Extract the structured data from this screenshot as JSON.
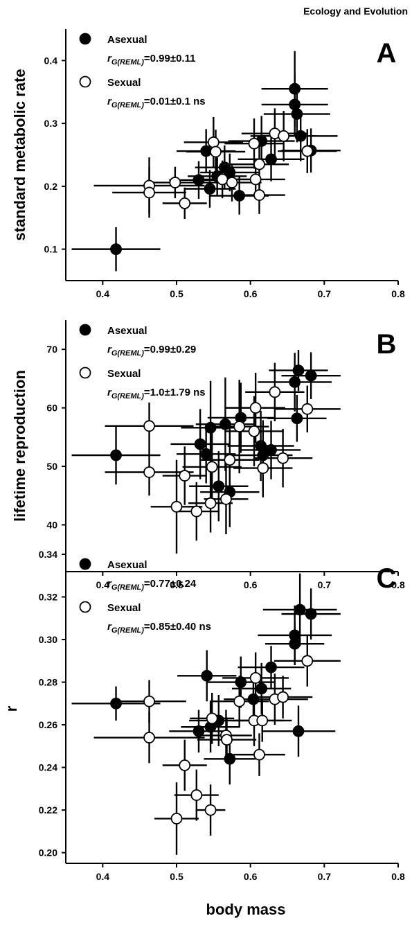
{
  "header": {
    "journal": "Ecology and Evolution"
  },
  "chart_data": [
    {
      "type": "scatter",
      "panel_label": "A",
      "xlabel": "",
      "ylabel": "standard metabolic rate",
      "xlim": [
        0.35,
        0.8
      ],
      "ylim": [
        0.05,
        0.45
      ],
      "xticks": [
        0.4,
        0.5,
        0.6,
        0.7,
        0.8
      ],
      "xtick_labels": [
        "0.4",
        "0.5",
        "0.6",
        "0.7",
        "0.8"
      ],
      "yticks": [
        0.1,
        0.2,
        0.3,
        0.4
      ],
      "ytick_labels": [
        "0.1",
        "0.2",
        "0.3",
        "0.4"
      ],
      "legend": [
        {
          "marker": "filled",
          "label": "Asexual",
          "stat_prefix": "r",
          "stat_sub": "G(REML)",
          "stat_value": "=0.99±0.11"
        },
        {
          "marker": "open",
          "label": "Sexual",
          "stat_prefix": "r",
          "stat_sub": "G(REML)",
          "stat_value": "=0.01±0.1 ns"
        }
      ],
      "series": [
        {
          "name": "Asexual",
          "marker": "filled",
          "points": [
            {
              "x": 0.418,
              "y": 0.1,
              "xerr": 0.06,
              "yerr": 0.035
            },
            {
              "x": 0.54,
              "y": 0.256,
              "xerr": 0.04,
              "yerr": 0.035
            },
            {
              "x": 0.53,
              "y": 0.21,
              "xerr": 0.04,
              "yerr": 0.03
            },
            {
              "x": 0.545,
              "y": 0.196,
              "xerr": 0.035,
              "yerr": 0.03
            },
            {
              "x": 0.555,
              "y": 0.216,
              "xerr": 0.04,
              "yerr": 0.03
            },
            {
              "x": 0.565,
              "y": 0.23,
              "xerr": 0.04,
              "yerr": 0.035
            },
            {
              "x": 0.572,
              "y": 0.222,
              "xerr": 0.04,
              "yerr": 0.03
            },
            {
              "x": 0.585,
              "y": 0.185,
              "xerr": 0.04,
              "yerr": 0.03
            },
            {
              "x": 0.615,
              "y": 0.272,
              "xerr": 0.045,
              "yerr": 0.04
            },
            {
              "x": 0.628,
              "y": 0.243,
              "xerr": 0.045,
              "yerr": 0.035
            },
            {
              "x": 0.66,
              "y": 0.355,
              "xerr": 0.045,
              "yerr": 0.06
            },
            {
              "x": 0.66,
              "y": 0.33,
              "xerr": 0.045,
              "yerr": 0.05
            },
            {
              "x": 0.663,
              "y": 0.315,
              "xerr": 0.045,
              "yerr": 0.045
            },
            {
              "x": 0.668,
              "y": 0.28,
              "xerr": 0.05,
              "yerr": 0.04
            },
            {
              "x": 0.682,
              "y": 0.257,
              "xerr": 0.04,
              "yerr": 0.035
            }
          ]
        },
        {
          "name": "Sexual",
          "marker": "open",
          "points": [
            {
              "x": 0.463,
              "y": 0.201,
              "xerr": 0.075,
              "yerr": 0.045
            },
            {
              "x": 0.463,
              "y": 0.19,
              "xerr": 0.05,
              "yerr": 0.04
            },
            {
              "x": 0.498,
              "y": 0.206,
              "xerr": 0.04,
              "yerr": 0.025
            },
            {
              "x": 0.511,
              "y": 0.173,
              "xerr": 0.03,
              "yerr": 0.025
            },
            {
              "x": 0.55,
              "y": 0.27,
              "xerr": 0.04,
              "yerr": 0.04
            },
            {
              "x": 0.553,
              "y": 0.255,
              "xerr": 0.04,
              "yerr": 0.035
            },
            {
              "x": 0.562,
              "y": 0.211,
              "xerr": 0.04,
              "yerr": 0.03
            },
            {
              "x": 0.575,
              "y": 0.206,
              "xerr": 0.04,
              "yerr": 0.03
            },
            {
              "x": 0.605,
              "y": 0.268,
              "xerr": 0.04,
              "yerr": 0.04
            },
            {
              "x": 0.607,
              "y": 0.211,
              "xerr": 0.04,
              "yerr": 0.03
            },
            {
              "x": 0.612,
              "y": 0.186,
              "xerr": 0.035,
              "yerr": 0.03
            },
            {
              "x": 0.612,
              "y": 0.235,
              "xerr": 0.04,
              "yerr": 0.035
            },
            {
              "x": 0.633,
              "y": 0.284,
              "xerr": 0.045,
              "yerr": 0.04
            },
            {
              "x": 0.645,
              "y": 0.28,
              "xerr": 0.045,
              "yerr": 0.04
            },
            {
              "x": 0.677,
              "y": 0.256,
              "xerr": 0.04,
              "yerr": 0.035
            }
          ]
        }
      ]
    },
    {
      "type": "scatter",
      "panel_label": "B",
      "xlabel": "",
      "ylabel": "lifetime reproduction",
      "xlim": [
        0.35,
        0.8
      ],
      "ylim": [
        32,
        75
      ],
      "xticks": [
        0.4,
        0.5,
        0.6,
        0.7,
        0.8
      ],
      "xtick_labels": [
        "0.4",
        "0.5",
        "0.6",
        "0.7",
        "0.8"
      ],
      "yticks": [
        40,
        50,
        60,
        70
      ],
      "ytick_labels": [
        "40",
        "50",
        "60",
        "70"
      ],
      "legend": [
        {
          "marker": "filled",
          "label": "Asexual",
          "stat_prefix": "r",
          "stat_sub": "G(REML)",
          "stat_value": "=0.99±0.29"
        },
        {
          "marker": "open",
          "label": "Sexual",
          "stat_prefix": "r",
          "stat_sub": "G(REML)",
          "stat_value": "=1.0±1.79 ns"
        }
      ],
      "series": [
        {
          "name": "Asexual",
          "marker": "filled",
          "points": [
            {
              "x": 0.418,
              "y": 51.9,
              "xerr": 0.06,
              "yerr": 5
            },
            {
              "x": 0.532,
              "y": 53.8,
              "xerr": 0.04,
              "yerr": 6
            },
            {
              "x": 0.54,
              "y": 52.1,
              "xerr": 0.04,
              "yerr": 5
            },
            {
              "x": 0.546,
              "y": 56.6,
              "xerr": 0.04,
              "yerr": 8
            },
            {
              "x": 0.557,
              "y": 46.6,
              "xerr": 0.04,
              "yerr": 6
            },
            {
              "x": 0.566,
              "y": 57.2,
              "xerr": 0.04,
              "yerr": 8
            },
            {
              "x": 0.572,
              "y": 45.6,
              "xerr": 0.04,
              "yerr": 6
            },
            {
              "x": 0.587,
              "y": 58.3,
              "xerr": 0.045,
              "yerr": 6
            },
            {
              "x": 0.614,
              "y": 53.5,
              "xerr": 0.045,
              "yerr": 6
            },
            {
              "x": 0.617,
              "y": 51.9,
              "xerr": 0.04,
              "yerr": 6
            },
            {
              "x": 0.628,
              "y": 52.8,
              "xerr": 0.04,
              "yerr": 5
            },
            {
              "x": 0.66,
              "y": 64.4,
              "xerr": 0.05,
              "yerr": 5
            },
            {
              "x": 0.663,
              "y": 58.2,
              "xerr": 0.04,
              "yerr": 4
            },
            {
              "x": 0.665,
              "y": 66.4,
              "xerr": 0.04,
              "yerr": 3.5
            },
            {
              "x": 0.682,
              "y": 65.5,
              "xerr": 0.04,
              "yerr": 4
            }
          ]
        },
        {
          "name": "Sexual",
          "marker": "open",
          "points": [
            {
              "x": 0.463,
              "y": 56.9,
              "xerr": 0.06,
              "yerr": 4
            },
            {
              "x": 0.463,
              "y": 49.0,
              "xerr": 0.06,
              "yerr": 4
            },
            {
              "x": 0.5,
              "y": 43.1,
              "xerr": 0.035,
              "yerr": 8
            },
            {
              "x": 0.511,
              "y": 48.4,
              "xerr": 0.03,
              "yerr": 5
            },
            {
              "x": 0.527,
              "y": 42.3,
              "xerr": 0.03,
              "yerr": 5
            },
            {
              "x": 0.546,
              "y": 43.7,
              "xerr": 0.03,
              "yerr": 5
            },
            {
              "x": 0.548,
              "y": 49.9,
              "xerr": 0.04,
              "yerr": 6
            },
            {
              "x": 0.567,
              "y": 44.4,
              "xerr": 0.03,
              "yerr": 6
            },
            {
              "x": 0.572,
              "y": 51.1,
              "xerr": 0.04,
              "yerr": 6
            },
            {
              "x": 0.585,
              "y": 56.8,
              "xerr": 0.04,
              "yerr": 8
            },
            {
              "x": 0.605,
              "y": 56.0,
              "xerr": 0.04,
              "yerr": 6
            },
            {
              "x": 0.607,
              "y": 60.0,
              "xerr": 0.04,
              "yerr": 6
            },
            {
              "x": 0.617,
              "y": 49.7,
              "xerr": 0.04,
              "yerr": 5
            },
            {
              "x": 0.633,
              "y": 62.7,
              "xerr": 0.04,
              "yerr": 5
            },
            {
              "x": 0.644,
              "y": 51.4,
              "xerr": 0.04,
              "yerr": 5
            },
            {
              "x": 0.677,
              "y": 59.8,
              "xerr": 0.045,
              "yerr": 4
            }
          ]
        }
      ]
    },
    {
      "type": "scatter",
      "panel_label": "C",
      "xlabel": "body mass",
      "ylabel": "r",
      "xlim": [
        0.35,
        0.8
      ],
      "ylim": [
        0.195,
        0.34
      ],
      "xticks": [
        0.4,
        0.5,
        0.6,
        0.7,
        0.8
      ],
      "xtick_labels": [
        "0.4",
        "0.5",
        "0.6",
        "0.7",
        "0.8"
      ],
      "yticks": [
        0.2,
        0.22,
        0.24,
        0.26,
        0.28,
        0.3,
        0.32,
        0.34
      ],
      "ytick_labels": [
        "0.20",
        "0.22",
        "0.24",
        "0.26",
        "0.28",
        "0.30",
        "0.32",
        "0.34"
      ],
      "legend": [
        {
          "marker": "filled",
          "label": "Asexual",
          "stat_prefix": "r",
          "stat_sub": "G(REML)",
          "stat_value": "=0.77±0.24"
        },
        {
          "marker": "open",
          "label": "Sexual",
          "stat_prefix": "r",
          "stat_sub": "G(REML)",
          "stat_value": "=0.85±0.40 ns"
        }
      ],
      "series": [
        {
          "name": "Asexual",
          "marker": "filled",
          "points": [
            {
              "x": 0.418,
              "y": 0.27,
              "xerr": 0.06,
              "yerr": 0.008
            },
            {
              "x": 0.53,
              "y": 0.257,
              "xerr": 0.04,
              "yerr": 0.01
            },
            {
              "x": 0.541,
              "y": 0.283,
              "xerr": 0.04,
              "yerr": 0.012
            },
            {
              "x": 0.546,
              "y": 0.259,
              "xerr": 0.04,
              "yerr": 0.012
            },
            {
              "x": 0.557,
              "y": 0.262,
              "xerr": 0.04,
              "yerr": 0.012
            },
            {
              "x": 0.572,
              "y": 0.244,
              "xerr": 0.035,
              "yerr": 0.012
            },
            {
              "x": 0.587,
              "y": 0.28,
              "xerr": 0.045,
              "yerr": 0.012
            },
            {
              "x": 0.604,
              "y": 0.272,
              "xerr": 0.04,
              "yerr": 0.012
            },
            {
              "x": 0.615,
              "y": 0.277,
              "xerr": 0.04,
              "yerr": 0.012
            },
            {
              "x": 0.628,
              "y": 0.287,
              "xerr": 0.045,
              "yerr": 0.01
            },
            {
              "x": 0.66,
              "y": 0.302,
              "xerr": 0.05,
              "yerr": 0.014
            },
            {
              "x": 0.66,
              "y": 0.298,
              "xerr": 0.04,
              "yerr": 0.01
            },
            {
              "x": 0.665,
              "y": 0.257,
              "xerr": 0.05,
              "yerr": 0.012
            },
            {
              "x": 0.667,
              "y": 0.314,
              "xerr": 0.05,
              "yerr": 0.017
            },
            {
              "x": 0.682,
              "y": 0.312,
              "xerr": 0.04,
              "yerr": 0.012
            }
          ]
        },
        {
          "name": "Sexual",
          "marker": "open",
          "points": [
            {
              "x": 0.463,
              "y": 0.271,
              "xerr": 0.05,
              "yerr": 0.01
            },
            {
              "x": 0.463,
              "y": 0.254,
              "xerr": 0.075,
              "yerr": 0.012
            },
            {
              "x": 0.5,
              "y": 0.216,
              "xerr": 0.03,
              "yerr": 0.017
            },
            {
              "x": 0.511,
              "y": 0.241,
              "xerr": 0.03,
              "yerr": 0.012
            },
            {
              "x": 0.527,
              "y": 0.227,
              "xerr": 0.03,
              "yerr": 0.012
            },
            {
              "x": 0.546,
              "y": 0.22,
              "xerr": 0.02,
              "yerr": 0.012
            },
            {
              "x": 0.548,
              "y": 0.263,
              "xerr": 0.03,
              "yerr": 0.012
            },
            {
              "x": 0.567,
              "y": 0.255,
              "xerr": 0.035,
              "yerr": 0.012
            },
            {
              "x": 0.568,
              "y": 0.253,
              "xerr": 0.04,
              "yerr": 0.01
            },
            {
              "x": 0.585,
              "y": 0.271,
              "xerr": 0.04,
              "yerr": 0.012
            },
            {
              "x": 0.605,
              "y": 0.262,
              "xerr": 0.04,
              "yerr": 0.012
            },
            {
              "x": 0.607,
              "y": 0.282,
              "xerr": 0.045,
              "yerr": 0.012
            },
            {
              "x": 0.612,
              "y": 0.246,
              "xerr": 0.035,
              "yerr": 0.01
            },
            {
              "x": 0.616,
              "y": 0.262,
              "xerr": 0.04,
              "yerr": 0.01
            },
            {
              "x": 0.633,
              "y": 0.272,
              "xerr": 0.045,
              "yerr": 0.012
            },
            {
              "x": 0.644,
              "y": 0.273,
              "xerr": 0.04,
              "yerr": 0.01
            },
            {
              "x": 0.677,
              "y": 0.29,
              "xerr": 0.045,
              "yerr": 0.012
            }
          ]
        }
      ]
    }
  ]
}
